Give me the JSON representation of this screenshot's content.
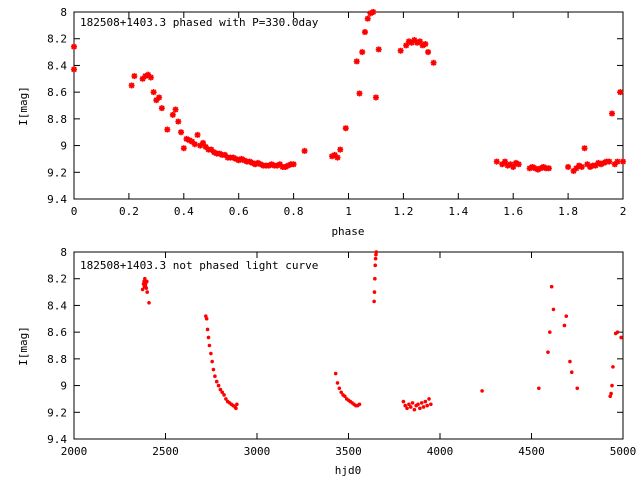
{
  "chart_data": [
    {
      "type": "scatter",
      "title": "182508+1403.3 phased with P=330.0day",
      "xlabel": "phase",
      "ylabel": "I[mag]",
      "xlim": [
        0,
        2
      ],
      "ylim": [
        8,
        9.4
      ],
      "y_inverted": true,
      "grid": false,
      "marker_color": "#ff0000",
      "marker": "plus-star",
      "xticks": [
        "0",
        "0.2",
        "0.4",
        "0.6",
        "0.8",
        "1",
        "1.2",
        "1.4",
        "1.6",
        "1.8",
        "2"
      ],
      "yticks": [
        "8",
        "8.2",
        "8.4",
        "8.6",
        "8.8",
        "9",
        "9.2",
        "9.4"
      ],
      "x": [
        0.0,
        0.0,
        0.21,
        0.22,
        0.25,
        0.26,
        0.27,
        0.28,
        0.29,
        0.3,
        0.31,
        0.32,
        0.34,
        0.36,
        0.37,
        0.38,
        0.39,
        0.4,
        0.41,
        0.42,
        0.43,
        0.44,
        0.45,
        0.46,
        0.47,
        0.48,
        0.49,
        0.5,
        0.51,
        0.52,
        0.53,
        0.54,
        0.55,
        0.56,
        0.57,
        0.58,
        0.59,
        0.6,
        0.61,
        0.62,
        0.63,
        0.64,
        0.65,
        0.66,
        0.67,
        0.68,
        0.69,
        0.7,
        0.71,
        0.72,
        0.73,
        0.74,
        0.75,
        0.76,
        0.77,
        0.78,
        0.79,
        0.8,
        0.84,
        0.94,
        0.95,
        0.96,
        0.97,
        0.99,
        1.03,
        1.04,
        1.05,
        1.06,
        1.07,
        1.08,
        1.09,
        1.1,
        1.11,
        1.19,
        1.21,
        1.22,
        1.23,
        1.24,
        1.25,
        1.26,
        1.27,
        1.28,
        1.29,
        1.31,
        1.54,
        1.56,
        1.57,
        1.58,
        1.59,
        1.6,
        1.61,
        1.62,
        1.66,
        1.67,
        1.68,
        1.69,
        1.7,
        1.71,
        1.72,
        1.73,
        1.8,
        1.82,
        1.83,
        1.84,
        1.85,
        1.86,
        1.87,
        1.88,
        1.89,
        1.9,
        1.91,
        1.92,
        1.93,
        1.94,
        1.95,
        1.96,
        1.97,
        1.98,
        1.99,
        2.0
      ],
      "y": [
        8.26,
        8.43,
        8.55,
        8.48,
        8.5,
        8.48,
        8.47,
        8.49,
        8.6,
        8.66,
        8.64,
        8.72,
        8.88,
        8.77,
        8.73,
        8.82,
        8.9,
        9.02,
        8.95,
        8.96,
        8.97,
        8.99,
        8.92,
        9.0,
        8.98,
        9.01,
        9.03,
        9.03,
        9.05,
        9.06,
        9.06,
        9.07,
        9.07,
        9.09,
        9.09,
        9.09,
        9.1,
        9.11,
        9.1,
        9.11,
        9.12,
        9.12,
        9.13,
        9.14,
        9.13,
        9.14,
        9.15,
        9.15,
        9.15,
        9.14,
        9.15,
        9.15,
        9.14,
        9.16,
        9.16,
        9.15,
        9.14,
        9.14,
        9.04,
        9.08,
        9.07,
        9.09,
        9.03,
        8.87,
        8.37,
        8.61,
        8.3,
        8.15,
        8.05,
        8.01,
        8.0,
        8.64,
        8.28,
        8.29,
        8.25,
        8.22,
        8.23,
        8.21,
        8.23,
        8.22,
        8.25,
        8.24,
        8.3,
        8.38,
        9.12,
        9.14,
        9.12,
        9.15,
        9.14,
        9.16,
        9.13,
        9.14,
        9.17,
        9.16,
        9.17,
        9.18,
        9.17,
        9.16,
        9.17,
        9.17,
        9.16,
        9.19,
        9.17,
        9.15,
        9.16,
        9.02,
        9.14,
        9.16,
        9.15,
        9.15,
        9.13,
        9.14,
        9.13,
        9.12,
        9.12,
        8.76,
        9.14,
        9.12,
        8.6,
        9.12
      ]
    },
    {
      "type": "scatter",
      "title": "182508+1403.3 not phased light curve",
      "xlabel": "hjd0",
      "ylabel": "I[mag]",
      "xlim": [
        2000,
        5000
      ],
      "ylim": [
        8,
        9.4
      ],
      "y_inverted": true,
      "grid": false,
      "marker_color": "#ff0000",
      "marker": "dot",
      "xticks": [
        "2000",
        "2500",
        "3000",
        "3500",
        "4000",
        "4500",
        "5000"
      ],
      "yticks": [
        "8",
        "8.2",
        "8.4",
        "8.6",
        "8.8",
        "9",
        "9.2",
        "9.4"
      ],
      "x": [
        2375,
        2380,
        2383,
        2385,
        2387,
        2390,
        2393,
        2395,
        2398,
        2400,
        2410,
        2720,
        2725,
        2730,
        2735,
        2740,
        2748,
        2755,
        2762,
        2770,
        2780,
        2790,
        2800,
        2810,
        2820,
        2830,
        2840,
        2850,
        2860,
        2870,
        2880,
        2885,
        2890,
        3430,
        3440,
        3450,
        3460,
        3470,
        3480,
        3490,
        3500,
        3510,
        3520,
        3530,
        3540,
        3550,
        3560,
        3640,
        3642,
        3644,
        3646,
        3648,
        3650,
        3652,
        3800,
        3810,
        3820,
        3830,
        3840,
        3850,
        3860,
        3870,
        3880,
        3890,
        3900,
        3910,
        3920,
        3930,
        3940,
        3950,
        4230,
        4540,
        4590,
        4600,
        4610,
        4620,
        4680,
        4690,
        4710,
        4720,
        4750,
        4930,
        4935,
        4940,
        4945,
        4960,
        4970,
        4990
      ],
      "y": [
        8.28,
        8.24,
        8.22,
        8.26,
        8.2,
        8.25,
        8.23,
        8.27,
        8.22,
        8.3,
        8.38,
        8.48,
        8.5,
        8.58,
        8.64,
        8.7,
        8.76,
        8.82,
        8.88,
        8.93,
        8.97,
        9.0,
        9.03,
        9.05,
        9.07,
        9.1,
        9.12,
        9.13,
        9.14,
        9.15,
        9.16,
        9.17,
        9.14,
        8.91,
        8.98,
        9.02,
        9.05,
        9.07,
        9.08,
        9.1,
        9.11,
        9.12,
        9.13,
        9.14,
        9.15,
        9.15,
        9.14,
        8.37,
        8.3,
        8.2,
        8.1,
        8.05,
        8.02,
        8.0,
        9.12,
        9.15,
        9.17,
        9.14,
        9.16,
        9.13,
        9.18,
        9.15,
        9.14,
        9.17,
        9.13,
        9.16,
        9.12,
        9.15,
        9.1,
        9.14,
        9.04,
        9.02,
        8.75,
        8.6,
        8.26,
        8.43,
        8.55,
        8.48,
        8.82,
        8.9,
        9.02,
        9.08,
        9.06,
        9.0,
        8.86,
        8.61,
        8.6,
        8.64
      ]
    }
  ]
}
